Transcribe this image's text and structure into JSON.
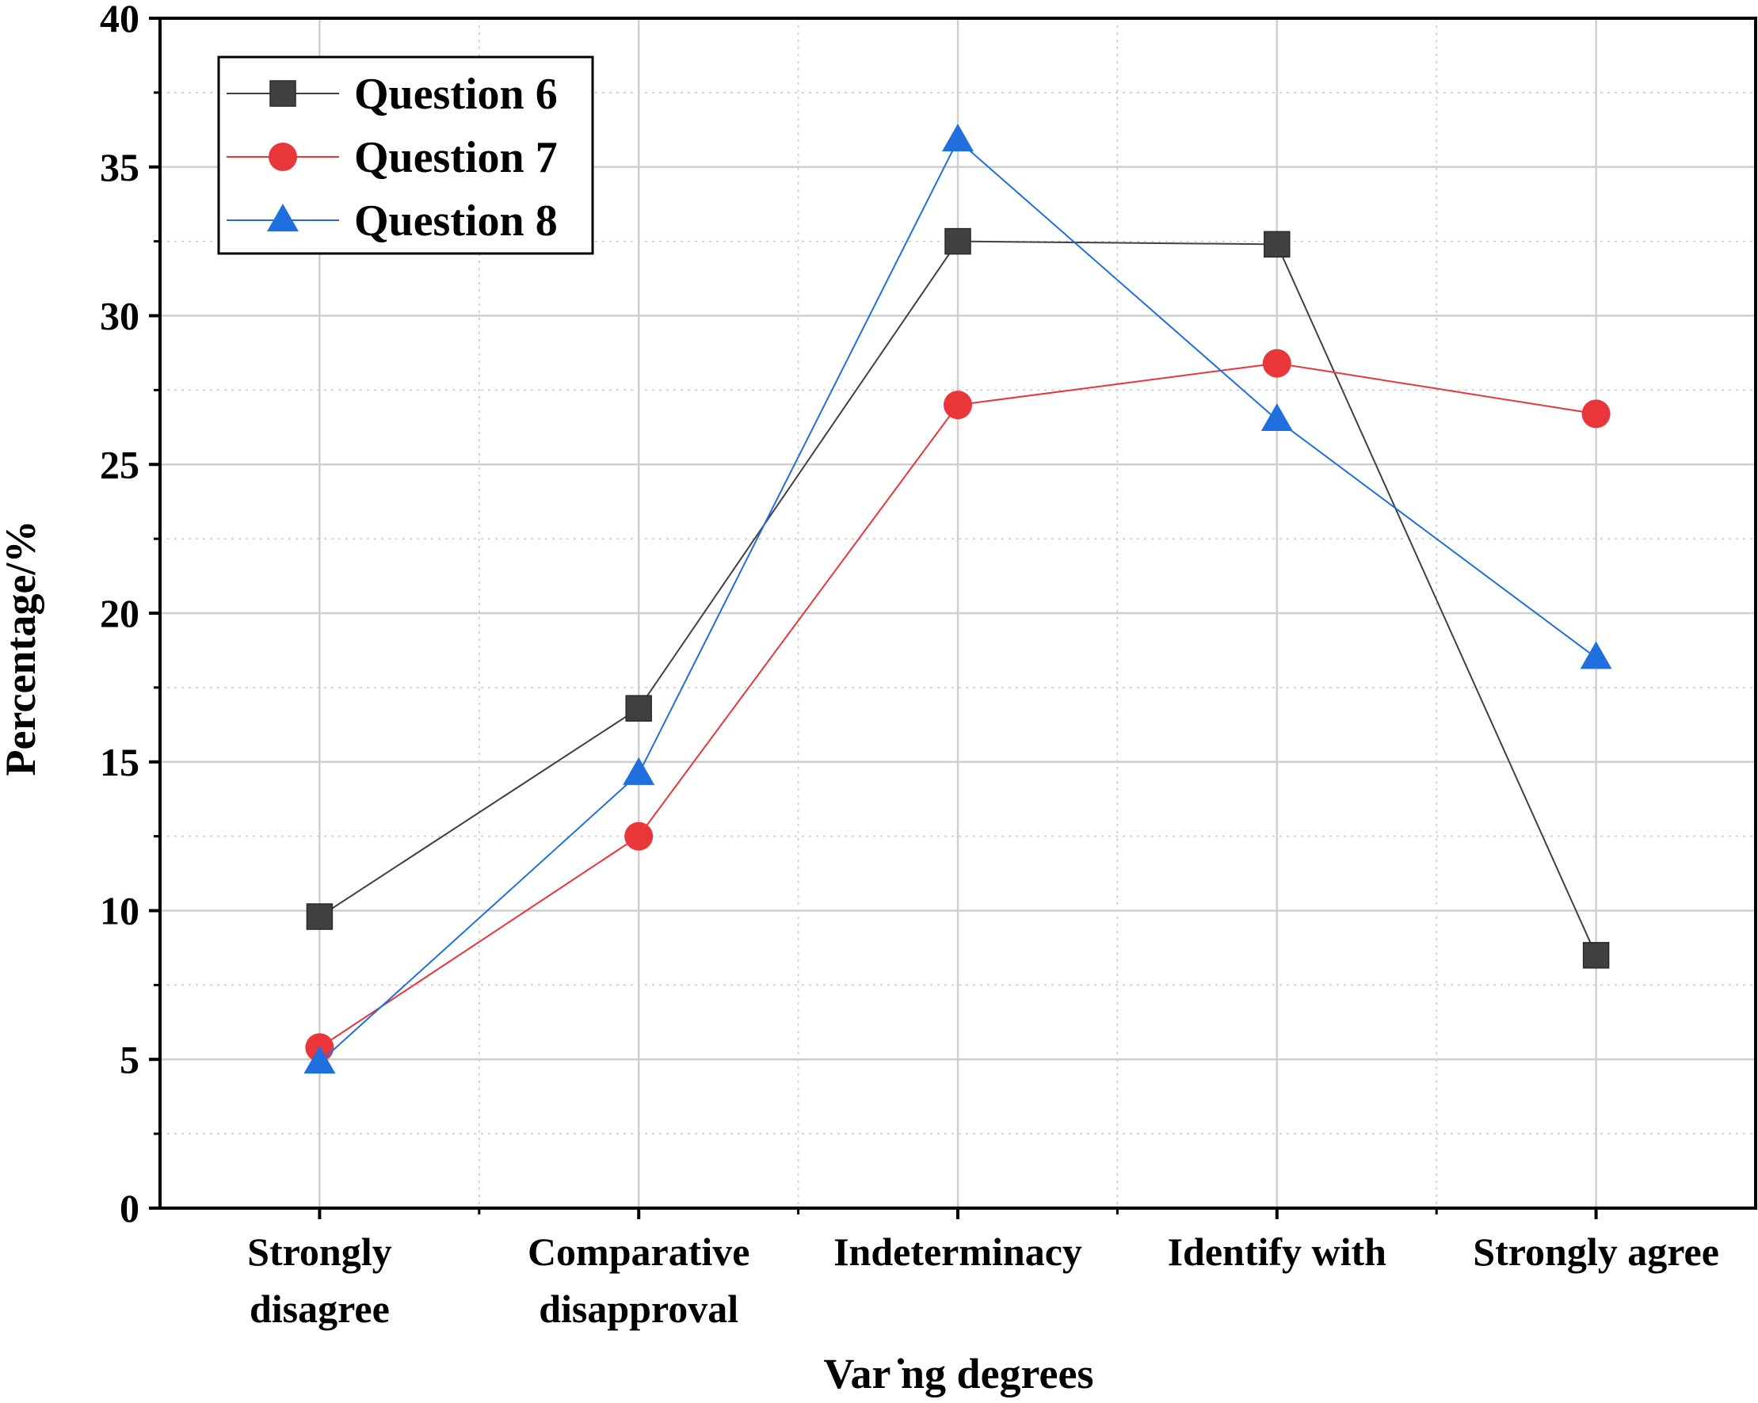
{
  "chart_data": {
    "type": "line",
    "title": "",
    "xlabel": "Var  ̇ng degrees",
    "ylabel": "Percentage/%",
    "ylim": [
      0,
      40
    ],
    "yticks": [
      0,
      5,
      10,
      15,
      20,
      25,
      30,
      35,
      40
    ],
    "grid": true,
    "legend_position": "top-left",
    "categories": [
      [
        "Strongly",
        "disagree"
      ],
      [
        "Comparative",
        "disapproval"
      ],
      [
        "Indeterminacy"
      ],
      [
        "Identify with"
      ],
      [
        "Strongly agree"
      ]
    ],
    "series": [
      {
        "name": "Question 6",
        "marker": "square",
        "color": "#404040",
        "values": [
          9.8,
          16.8,
          32.5,
          32.4,
          8.5
        ]
      },
      {
        "name": "Question 7",
        "marker": "circle",
        "color": "#e8363b",
        "values": [
          5.4,
          12.5,
          27.0,
          28.4,
          26.7
        ]
      },
      {
        "name": "Question 8",
        "marker": "triangle",
        "color": "#1f6fdf",
        "values": [
          4.9,
          14.6,
          35.9,
          26.5,
          18.5
        ]
      }
    ]
  }
}
